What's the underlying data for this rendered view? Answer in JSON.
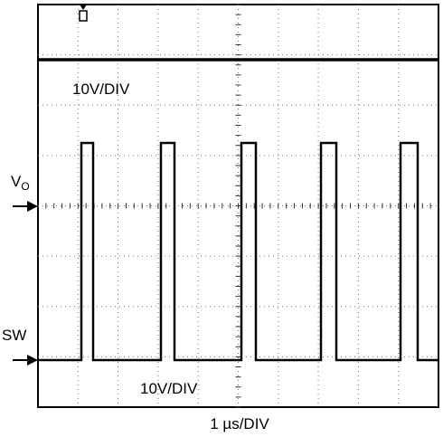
{
  "labels": {
    "vo_label": "V",
    "vo_sub": "O",
    "sw_label": "SW",
    "vo_scale": "10V/DIV",
    "sw_scale": "10V/DIV",
    "time_scale": "1 µs/DIV"
  }
}
